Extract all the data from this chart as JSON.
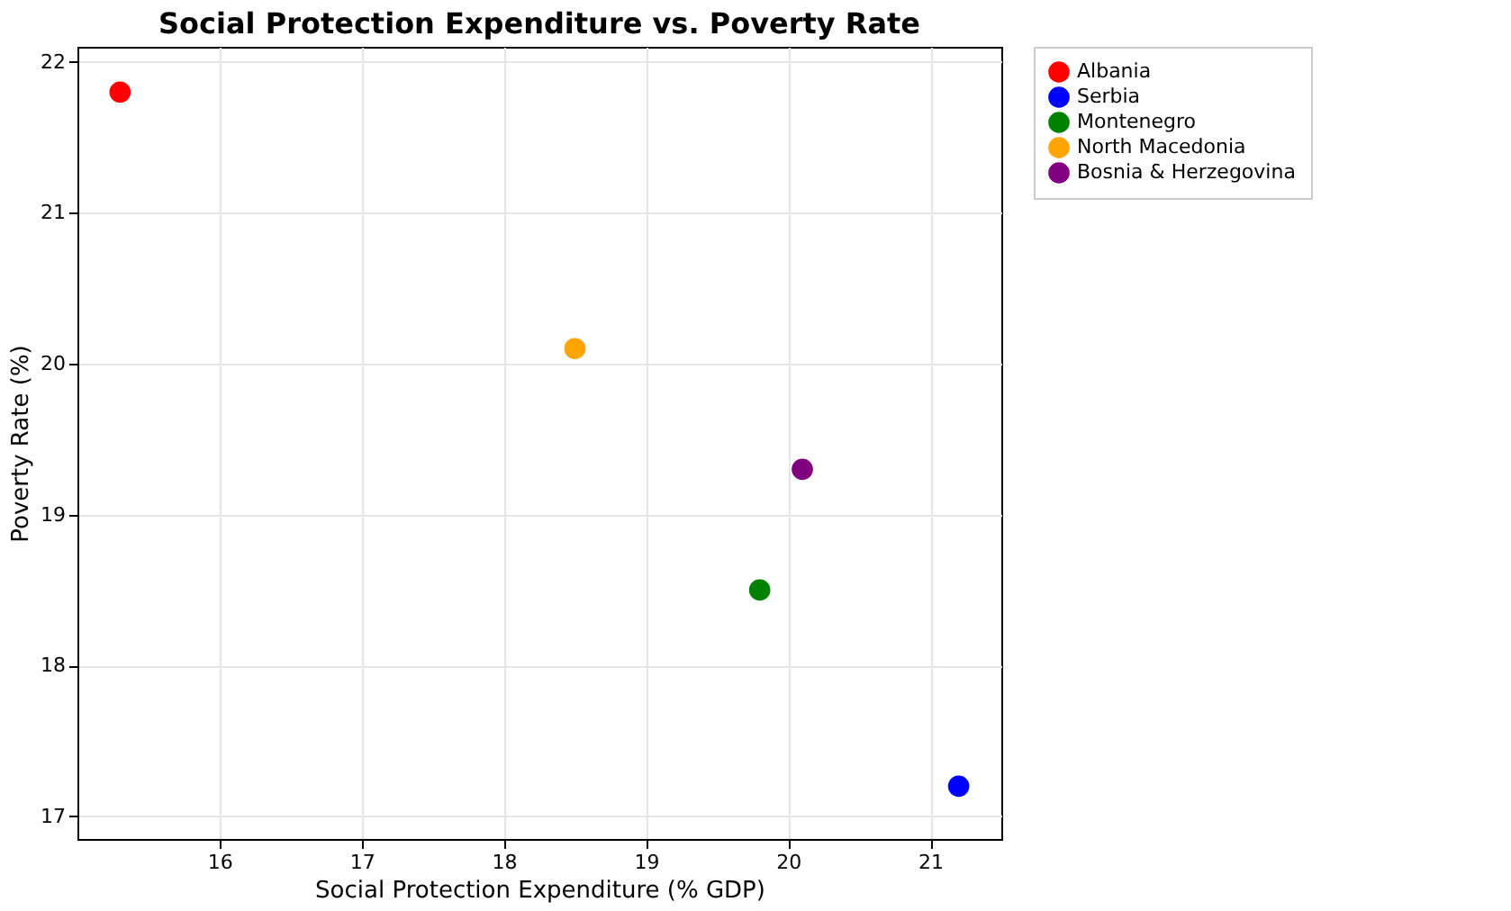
{
  "chart_data": {
    "type": "scatter",
    "title": "Social Protection Expenditure vs. Poverty Rate",
    "xlabel": "Social Protection Expenditure (% GDP)",
    "ylabel": "Poverty Rate (%)",
    "series": [
      {
        "name": "Albania",
        "color": "#ff0000",
        "x": [
          15.3
        ],
        "values": [
          21.8
        ]
      },
      {
        "name": "Serbia",
        "color": "#0000ff",
        "x": [
          21.2
        ],
        "values": [
          17.2
        ]
      },
      {
        "name": "Montenegro",
        "color": "#008000",
        "x": [
          19.8
        ],
        "values": [
          18.5
        ]
      },
      {
        "name": "North Macedonia",
        "color": "#ffa500",
        "x": [
          18.5
        ],
        "values": [
          20.1
        ]
      },
      {
        "name": "Bosnia & Herzegovina",
        "color": "#800080",
        "x": [
          20.1
        ],
        "values": [
          19.3
        ]
      }
    ],
    "xlim": [
      15.0,
      21.5
    ],
    "xticks": [
      16,
      17,
      18,
      19,
      20,
      21
    ],
    "ylim": [
      16.85,
      22.1
    ],
    "yticks": [
      17,
      18,
      19,
      20,
      21,
      22
    ],
    "grid": true,
    "legend": "top right",
    "marker": "circle"
  }
}
